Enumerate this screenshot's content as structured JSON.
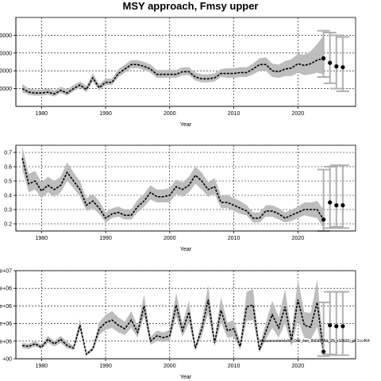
{
  "figure": {
    "title": "MSY approach, Fmsy upper",
    "footnote": "/eliassessments/to_O/R_her_INGRFAE_25_r10602_git 1cc464"
  },
  "chart_data": [
    {
      "type": "line",
      "panel": "top",
      "xlabel": "Year",
      "ylabel": "",
      "xlim": [
        1976,
        2029
      ],
      "ylim": [
        0,
        10
      ],
      "x_ticks": [
        1980,
        1990,
        2000,
        2010,
        2020
      ],
      "y_ticks": [
        2,
        4,
        6,
        8
      ],
      "y_tick_labels": [
        "0000",
        "0000",
        "0000",
        "0000"
      ],
      "grid": true,
      "x": [
        1977,
        1978,
        1979,
        1980,
        1981,
        1982,
        1983,
        1984,
        1985,
        1986,
        1987,
        1988,
        1989,
        1990,
        1991,
        1992,
        1993,
        1994,
        1995,
        1996,
        1997,
        1998,
        1999,
        2000,
        2001,
        2002,
        2003,
        2004,
        2005,
        2006,
        2007,
        2008,
        2009,
        2010,
        2011,
        2012,
        2013,
        2014,
        2015,
        2016,
        2017,
        2018,
        2019,
        2020,
        2021,
        2022,
        2023,
        2024
      ],
      "series": [
        {
          "values": [
            2.0,
            1.6,
            1.5,
            1.5,
            1.6,
            1.4,
            1.8,
            1.5,
            2.0,
            2.4,
            1.9,
            3.2,
            2.1,
            2.7,
            2.7,
            3.7,
            4.2,
            4.7,
            4.7,
            4.5,
            4.2,
            3.6,
            3.6,
            3.6,
            3.6,
            3.9,
            3.9,
            3.3,
            3.1,
            3.1,
            3.2,
            3.7,
            3.7,
            3.7,
            3.8,
            3.8,
            4.2,
            4.7,
            4.7,
            4.0,
            3.9,
            4.2,
            4.3,
            4.8,
            4.6,
            4.8,
            5.2,
            5.4
          ],
          "lower": [
            1.6,
            1.3,
            1.2,
            1.2,
            1.3,
            1.1,
            1.5,
            1.2,
            1.7,
            2.1,
            1.6,
            2.8,
            1.8,
            2.4,
            2.4,
            3.3,
            3.8,
            4.3,
            4.3,
            4.1,
            3.8,
            3.2,
            3.2,
            3.2,
            3.2,
            3.5,
            3.5,
            2.9,
            2.7,
            2.7,
            2.8,
            3.3,
            3.2,
            3.2,
            3.3,
            3.3,
            3.6,
            4.0,
            4.0,
            3.3,
            3.2,
            3.4,
            3.4,
            3.8,
            3.5,
            3.6,
            3.8,
            3.6
          ],
          "upper": [
            2.5,
            2.0,
            1.9,
            1.9,
            2.0,
            1.8,
            2.2,
            1.9,
            2.4,
            2.8,
            2.3,
            3.7,
            2.5,
            3.1,
            3.1,
            4.2,
            4.7,
            5.2,
            5.2,
            5.0,
            4.7,
            4.1,
            4.1,
            4.1,
            4.1,
            4.4,
            4.4,
            3.8,
            3.6,
            3.6,
            3.7,
            4.2,
            4.3,
            4.3,
            4.4,
            4.4,
            4.8,
            5.4,
            5.5,
            4.8,
            4.7,
            5.1,
            5.3,
            5.9,
            5.8,
            6.2,
            7.0,
            8.0
          ]
        }
      ],
      "forecast": {
        "x": [
          2024,
          2025,
          2026,
          2027
        ],
        "values": [
          5.4,
          4.9,
          4.5,
          4.4
        ],
        "lower": [
          3.3,
          2.6,
          2.0,
          1.7
        ],
        "upper": [
          8.5,
          8.3,
          8.0,
          7.8
        ]
      }
    },
    {
      "type": "line",
      "panel": "middle",
      "xlabel": "Year",
      "ylabel": "",
      "xlim": [
        1976,
        2029
      ],
      "ylim": [
        0.15,
        0.75
      ],
      "x_ticks": [
        1980,
        1990,
        2000,
        2010,
        2020
      ],
      "y_ticks": [
        0.2,
        0.3,
        0.4,
        0.5,
        0.6,
        0.7
      ],
      "y_tick_labels": [
        "0.2",
        "0.3",
        "0.4",
        "0.5",
        "0.6",
        "0.7"
      ],
      "grid": true,
      "x": [
        1977,
        1978,
        1979,
        1980,
        1981,
        1982,
        1983,
        1984,
        1985,
        1986,
        1987,
        1988,
        1989,
        1990,
        1991,
        1992,
        1993,
        1994,
        1995,
        1996,
        1997,
        1998,
        1999,
        2000,
        2001,
        2002,
        2003,
        2004,
        2005,
        2006,
        2007,
        2008,
        2009,
        2010,
        2011,
        2012,
        2013,
        2014,
        2015,
        2016,
        2017,
        2018,
        2019,
        2020,
        2021,
        2022,
        2023,
        2024
      ],
      "series": [
        {
          "values": [
            0.66,
            0.48,
            0.5,
            0.43,
            0.47,
            0.44,
            0.47,
            0.56,
            0.5,
            0.44,
            0.33,
            0.36,
            0.31,
            0.24,
            0.27,
            0.28,
            0.26,
            0.26,
            0.32,
            0.36,
            0.42,
            0.39,
            0.39,
            0.4,
            0.46,
            0.44,
            0.47,
            0.54,
            0.5,
            0.44,
            0.46,
            0.35,
            0.35,
            0.33,
            0.31,
            0.29,
            0.24,
            0.24,
            0.29,
            0.29,
            0.27,
            0.24,
            0.26,
            0.28,
            0.3,
            0.3,
            0.3,
            0.23
          ],
          "lower": [
            0.58,
            0.42,
            0.44,
            0.38,
            0.42,
            0.39,
            0.42,
            0.5,
            0.45,
            0.39,
            0.29,
            0.31,
            0.27,
            0.21,
            0.24,
            0.25,
            0.23,
            0.23,
            0.28,
            0.32,
            0.37,
            0.35,
            0.35,
            0.35,
            0.41,
            0.39,
            0.42,
            0.48,
            0.44,
            0.39,
            0.41,
            0.31,
            0.31,
            0.29,
            0.27,
            0.26,
            0.21,
            0.21,
            0.25,
            0.25,
            0.23,
            0.21,
            0.22,
            0.24,
            0.26,
            0.25,
            0.24,
            0.17
          ],
          "upper": [
            0.74,
            0.55,
            0.57,
            0.49,
            0.53,
            0.5,
            0.53,
            0.63,
            0.56,
            0.5,
            0.38,
            0.41,
            0.36,
            0.28,
            0.31,
            0.32,
            0.3,
            0.3,
            0.37,
            0.41,
            0.47,
            0.44,
            0.44,
            0.45,
            0.51,
            0.49,
            0.53,
            0.6,
            0.56,
            0.49,
            0.52,
            0.4,
            0.4,
            0.38,
            0.36,
            0.33,
            0.28,
            0.28,
            0.33,
            0.33,
            0.31,
            0.28,
            0.3,
            0.32,
            0.35,
            0.35,
            0.36,
            0.3
          ]
        }
      ],
      "forecast": {
        "x": [
          2024,
          2025,
          2026,
          2027
        ],
        "values": [
          0.23,
          0.35,
          0.33,
          0.33
        ],
        "lower": [
          0.15,
          0.17,
          0.18,
          0.17
        ],
        "upper": [
          0.58,
          0.6,
          0.61,
          0.61
        ]
      }
    },
    {
      "type": "line",
      "panel": "bottom",
      "xlabel": "Year",
      "ylabel": "",
      "xlim": [
        1976,
        2029
      ],
      "ylim": [
        0,
        10
      ],
      "x_ticks": [
        1980,
        1990,
        2000,
        2010,
        2020
      ],
      "y_ticks": [
        0,
        2,
        4,
        6,
        8,
        10
      ],
      "y_tick_labels": [
        "+00",
        "e+06",
        "e+06",
        "e+06",
        "e+06",
        "e+07"
      ],
      "grid": true,
      "x": [
        1977,
        1978,
        1979,
        1980,
        1981,
        1982,
        1983,
        1984,
        1985,
        1986,
        1987,
        1988,
        1989,
        1990,
        1991,
        1992,
        1993,
        1994,
        1995,
        1996,
        1997,
        1998,
        1999,
        2000,
        2001,
        2002,
        2003,
        2004,
        2005,
        2006,
        2007,
        2008,
        2009,
        2010,
        2011,
        2012,
        2013,
        2014,
        2015,
        2016,
        2017,
        2018,
        2019,
        2020,
        2021,
        2022,
        2023,
        2024
      ],
      "series": [
        {
          "values": [
            1.5,
            1.4,
            1.7,
            1.3,
            2.2,
            1.7,
            2.2,
            1.5,
            1.2,
            3.8,
            0.5,
            1.1,
            3.4,
            4.1,
            4.4,
            3.8,
            3.4,
            4.4,
            3.0,
            6.0,
            2.0,
            2.6,
            2.4,
            2.6,
            6.1,
            3.2,
            5.3,
            1.2,
            3.4,
            6.7,
            1.8,
            5.5,
            3.2,
            3.4,
            1.4,
            5.9,
            6.1,
            1.0,
            3.1,
            5.0,
            3.5,
            5.9,
            2.1,
            6.7,
            3.8,
            3.6,
            6.4,
            0.8
          ],
          "lower": [
            1.2,
            1.1,
            1.4,
            1.1,
            1.8,
            1.4,
            1.8,
            1.2,
            1.0,
            3.2,
            0.4,
            0.9,
            2.7,
            3.3,
            3.5,
            3.0,
            2.7,
            3.5,
            2.4,
            4.8,
            1.6,
            2.0,
            1.9,
            2.0,
            4.8,
            2.5,
            4.1,
            0.9,
            2.6,
            5.1,
            1.4,
            4.1,
            2.4,
            2.5,
            1.0,
            4.3,
            4.4,
            0.7,
            2.2,
            3.5,
            2.4,
            4.0,
            1.4,
            4.4,
            2.4,
            2.2,
            3.6,
            0.3
          ],
          "upper": [
            1.8,
            1.7,
            2.0,
            1.6,
            2.6,
            2.0,
            2.6,
            1.9,
            1.5,
            4.5,
            0.7,
            1.4,
            4.1,
            5.0,
            5.4,
            4.7,
            4.2,
            5.4,
            3.7,
            7.3,
            2.5,
            3.2,
            3.0,
            3.3,
            7.5,
            4.0,
            6.6,
            1.5,
            4.3,
            8.3,
            2.3,
            7.0,
            4.1,
            4.4,
            1.9,
            7.6,
            7.9,
            1.4,
            4.1,
            6.6,
            4.7,
            7.9,
            2.9,
            9.0,
            5.3,
            5.2,
            9.0,
            1.6
          ]
        }
      ],
      "forecast": {
        "x": [
          2024,
          2025,
          2026,
          2027
        ],
        "values": [
          0.8,
          3.8,
          3.7,
          3.7
        ],
        "lower": [
          0.3,
          0.5,
          0.4,
          0.4
        ],
        "upper": [
          6.4,
          7.6,
          7.6,
          7.6
        ]
      }
    }
  ]
}
